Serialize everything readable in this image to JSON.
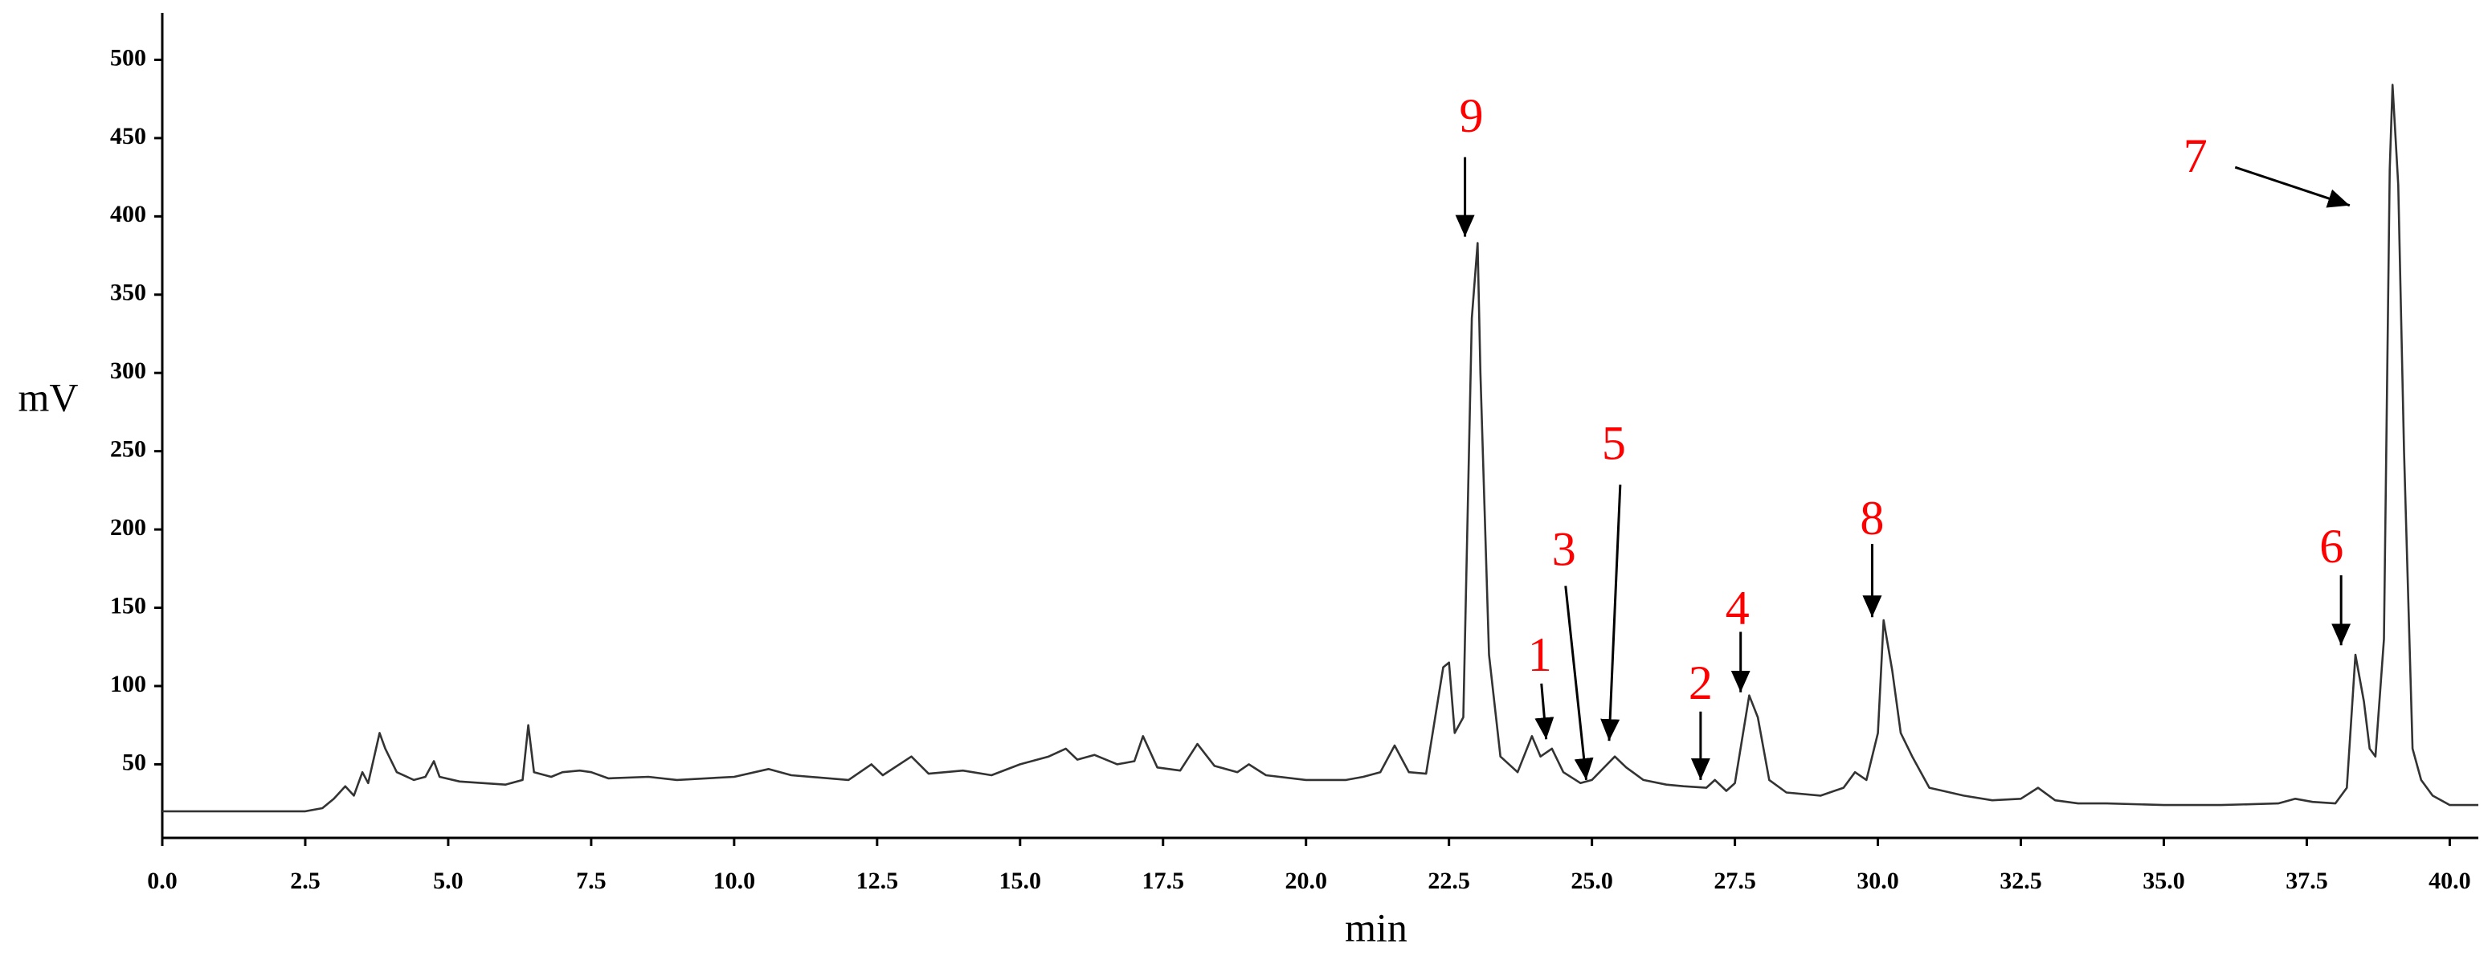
{
  "chart_data": {
    "type": "line",
    "xlabel": "min",
    "ylabel": "mV",
    "xlim": [
      0,
      40.5
    ],
    "ylim": [
      3,
      530
    ],
    "xticks": [
      {
        "value": 0,
        "label": "0.0"
      },
      2.5,
      {
        "value": 5,
        "label": "5.0"
      },
      7.5,
      {
        "value": 10,
        "label": "10.0"
      },
      12.5,
      {
        "value": 15,
        "label": "15.0"
      },
      17.5,
      {
        "value": 20,
        "label": "20.0"
      },
      22.5,
      {
        "value": 25,
        "label": "25.0"
      },
      27.5,
      {
        "value": 30,
        "label": "30.0"
      },
      32.5,
      {
        "value": 35,
        "label": "35.0"
      },
      37.5,
      {
        "value": 40,
        "label": "40.0"
      }
    ],
    "yticks": [
      50,
      100,
      150,
      200,
      250,
      300,
      350,
      400,
      450,
      500
    ],
    "color": "#333333",
    "x": [
      0,
      2.5,
      2.8,
      3.0,
      3.2,
      3.35,
      3.5,
      3.6,
      3.8,
      3.9,
      4.1,
      4.4,
      4.6,
      4.75,
      4.85,
      5.2,
      6.0,
      6.3,
      6.4,
      6.5,
      6.8,
      7.0,
      7.3,
      7.5,
      7.8,
      8.5,
      9,
      10,
      10.6,
      11,
      12,
      12.4,
      12.6,
      13.1,
      13.4,
      14,
      14.5,
      15,
      15.5,
      15.8,
      16,
      16.3,
      16.7,
      17,
      17.15,
      17.4,
      17.8,
      18.1,
      18.4,
      18.8,
      19,
      19.3,
      20,
      20.7,
      21,
      21.3,
      21.55,
      21.8,
      22.1,
      22.4,
      22.5,
      22.6,
      22.75,
      22.9,
      23.0,
      23.05,
      23.2,
      23.4,
      23.7,
      23.95,
      24.1,
      24.3,
      24.5,
      24.8,
      25.0,
      25.4,
      25.6,
      25.9,
      26.3,
      26.6,
      27.0,
      27.15,
      27.35,
      27.5,
      27.75,
      27.9,
      28.1,
      28.4,
      29,
      29.4,
      29.6,
      29.8,
      30.0,
      30.1,
      30.25,
      30.4,
      30.6,
      30.9,
      31.5,
      32,
      32.5,
      32.8,
      33.1,
      33.5,
      34,
      35,
      36,
      37,
      37.3,
      37.6,
      38,
      38.2,
      38.35,
      38.5,
      38.6,
      38.7,
      38.85,
      38.95,
      39.0,
      39.1,
      39.2,
      39.35,
      39.5,
      39.7,
      40.0,
      40.5
    ],
    "y": [
      20,
      20,
      22,
      28,
      36,
      30,
      45,
      38,
      70,
      60,
      45,
      40,
      42,
      52,
      42,
      39,
      37,
      40,
      75,
      45,
      42,
      45,
      46,
      45,
      41,
      42,
      40,
      42,
      47,
      43,
      40,
      50,
      43,
      55,
      44,
      46,
      43,
      50,
      55,
      60,
      53,
      56,
      50,
      52,
      68,
      48,
      46,
      63,
      49,
      45,
      50,
      43,
      40,
      40,
      42,
      45,
      62,
      45,
      44,
      112,
      115,
      70,
      80,
      335,
      383,
      300,
      120,
      55,
      45,
      68,
      55,
      60,
      45,
      38,
      40,
      55,
      48,
      40,
      37,
      36,
      35,
      40,
      33,
      38,
      94,
      80,
      40,
      32,
      30,
      35,
      45,
      40,
      70,
      142,
      110,
      70,
      55,
      35,
      30,
      27,
      28,
      35,
      27,
      25,
      25,
      24,
      24,
      25,
      28,
      26,
      25,
      35,
      120,
      90,
      60,
      55,
      130,
      430,
      484,
      420,
      250,
      60,
      40,
      30,
      24,
      24
    ],
    "annotations": [
      {
        "text": "9",
        "x": 22.78,
        "y": 387
      },
      {
        "text": "1",
        "x": 24.2,
        "y": 66
      },
      {
        "text": "3",
        "x": 24.9,
        "y": 40
      },
      {
        "text": "5",
        "x": 25.3,
        "y": 65
      },
      {
        "text": "2",
        "x": 26.9,
        "y": 40
      },
      {
        "text": "4",
        "x": 27.6,
        "y": 96
      },
      {
        "text": "8",
        "x": 29.9,
        "y": 144
      },
      {
        "text": "6",
        "x": 38.1,
        "y": 126
      },
      {
        "text": "7",
        "x": 38.25,
        "y": 407
      }
    ]
  }
}
